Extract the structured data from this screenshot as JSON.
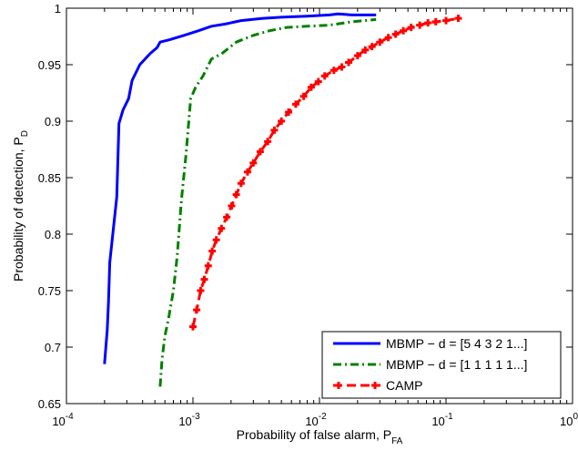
{
  "chart_data": {
    "type": "line",
    "title": "",
    "xlabel": "Probability of false alarm, P",
    "xlabel_sub": "FA",
    "ylabel": "Probability of detection, P",
    "ylabel_sub": "D",
    "xscale": "log",
    "xlim": [
      0.0001,
      1
    ],
    "ylim": [
      0.65,
      1
    ],
    "grid": false,
    "legend_position": "bottom-right",
    "x_ticks": [
      {
        "value": 0.0001,
        "base": "10",
        "exp": "-4"
      },
      {
        "value": 0.001,
        "base": "10",
        "exp": "-3"
      },
      {
        "value": 0.01,
        "base": "10",
        "exp": "-2"
      },
      {
        "value": 0.1,
        "base": "10",
        "exp": "-1"
      },
      {
        "value": 1,
        "base": "10",
        "exp": "0"
      }
    ],
    "y_ticks": [
      {
        "value": 0.65,
        "label": "0.65"
      },
      {
        "value": 0.7,
        "label": "0.7"
      },
      {
        "value": 0.75,
        "label": "0.75"
      },
      {
        "value": 0.8,
        "label": "0.8"
      },
      {
        "value": 0.85,
        "label": "0.85"
      },
      {
        "value": 0.9,
        "label": "0.9"
      },
      {
        "value": 0.95,
        "label": "0.95"
      },
      {
        "value": 1,
        "label": "1"
      }
    ],
    "series": [
      {
        "name": "MBMP − d = [5 4 3 2 1...]",
        "color": "#0000ff",
        "style": "solid",
        "marker": "none",
        "x": [
          0.0002,
          0.00021,
          0.000215,
          0.00022,
          0.00025,
          0.00026,
          0.00028,
          0.00031,
          0.00033,
          0.00038,
          0.00046,
          0.00052,
          0.00055,
          0.00065,
          0.00085,
          0.0011,
          0.0014,
          0.0018,
          0.0024,
          0.0035,
          0.005,
          0.008,
          0.012,
          0.014,
          0.018,
          0.028
        ],
        "y": [
          0.685,
          0.715,
          0.74,
          0.775,
          0.833,
          0.898,
          0.91,
          0.92,
          0.936,
          0.95,
          0.96,
          0.965,
          0.97,
          0.972,
          0.976,
          0.98,
          0.984,
          0.986,
          0.989,
          0.991,
          0.992,
          0.993,
          0.994,
          0.995,
          0.994,
          0.994
        ]
      },
      {
        "name": "MBMP − d = [1 1 1 1 1...]",
        "color": "#008000",
        "style": "dashdot",
        "marker": "none",
        "x": [
          0.00055,
          0.00057,
          0.0006,
          0.00064,
          0.0007,
          0.00075,
          0.00081,
          0.00088,
          0.00096,
          0.00105,
          0.0012,
          0.0014,
          0.0017,
          0.0022,
          0.003,
          0.004,
          0.0055,
          0.008,
          0.012,
          0.018,
          0.028
        ],
        "y": [
          0.665,
          0.69,
          0.71,
          0.725,
          0.75,
          0.78,
          0.83,
          0.87,
          0.92,
          0.93,
          0.94,
          0.955,
          0.96,
          0.97,
          0.976,
          0.98,
          0.983,
          0.984,
          0.985,
          0.988,
          0.99
        ]
      },
      {
        "name": "CAMP",
        "color": "#ff0000",
        "style": "dashed",
        "marker": "plus",
        "x": [
          0.001,
          0.00107,
          0.00115,
          0.00123,
          0.00132,
          0.00142,
          0.00153,
          0.00168,
          0.00185,
          0.00202,
          0.0022,
          0.0024,
          0.0027,
          0.003,
          0.0034,
          0.0039,
          0.0044,
          0.005,
          0.0057,
          0.0065,
          0.0075,
          0.0086,
          0.0098,
          0.011,
          0.013,
          0.015,
          0.017,
          0.02,
          0.023,
          0.026,
          0.03,
          0.035,
          0.04,
          0.046,
          0.053,
          0.062,
          0.072,
          0.083,
          0.1,
          0.125
        ],
        "y": [
          0.718,
          0.733,
          0.75,
          0.76,
          0.772,
          0.785,
          0.795,
          0.805,
          0.815,
          0.825,
          0.835,
          0.845,
          0.855,
          0.863,
          0.873,
          0.882,
          0.892,
          0.9,
          0.908,
          0.915,
          0.922,
          0.93,
          0.935,
          0.94,
          0.945,
          0.948,
          0.952,
          0.958,
          0.963,
          0.966,
          0.97,
          0.974,
          0.977,
          0.98,
          0.983,
          0.985,
          0.987,
          0.988,
          0.989,
          0.991
        ]
      }
    ]
  }
}
